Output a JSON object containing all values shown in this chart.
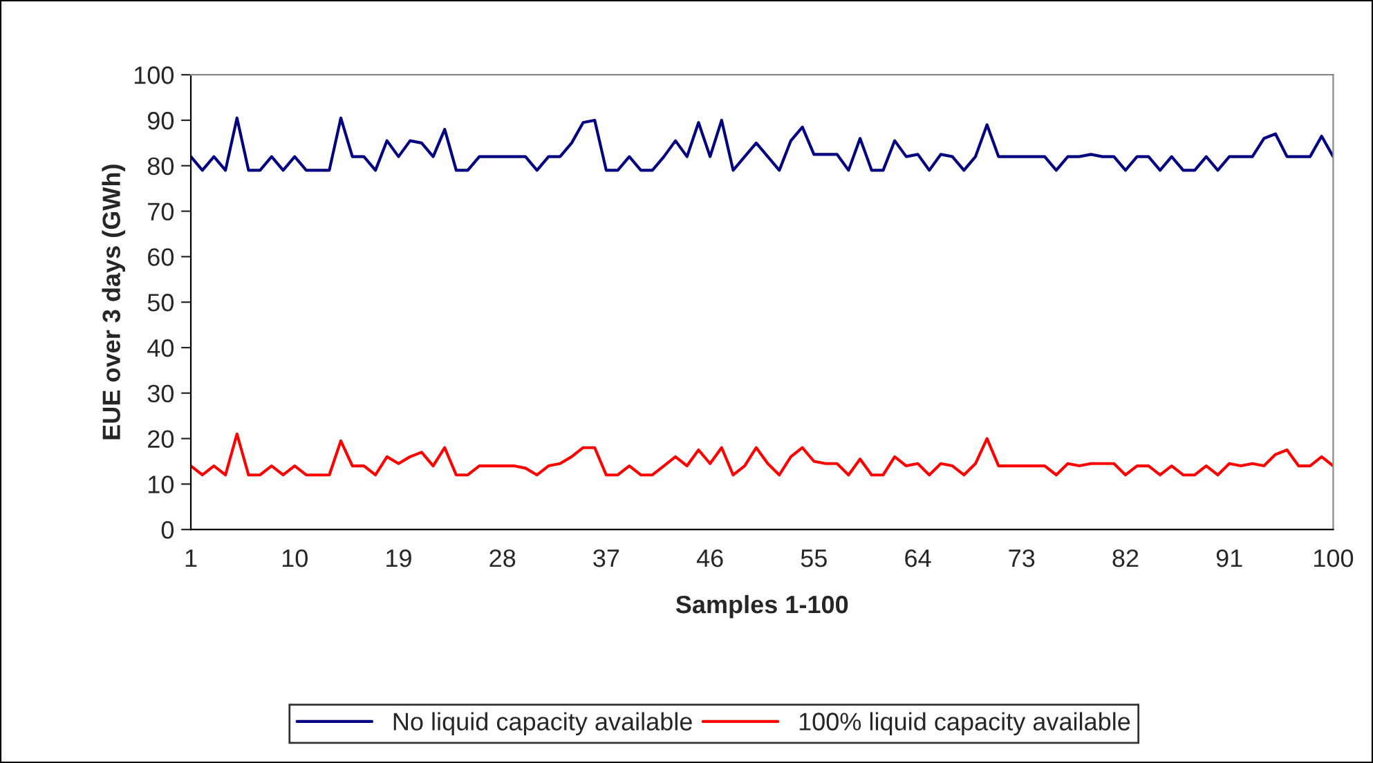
{
  "chart_data": {
    "type": "line",
    "xlabel": "Samples 1-100",
    "ylabel": "EUE over 3 days (GWh)",
    "x": [
      1,
      2,
      3,
      4,
      5,
      6,
      7,
      8,
      9,
      10,
      11,
      12,
      13,
      14,
      15,
      16,
      17,
      18,
      19,
      20,
      21,
      22,
      23,
      24,
      25,
      26,
      27,
      28,
      29,
      30,
      31,
      32,
      33,
      34,
      35,
      36,
      37,
      38,
      39,
      40,
      41,
      42,
      43,
      44,
      45,
      46,
      47,
      48,
      49,
      50,
      51,
      52,
      53,
      54,
      55,
      56,
      57,
      58,
      59,
      60,
      61,
      62,
      63,
      64,
      65,
      66,
      67,
      68,
      69,
      70,
      71,
      72,
      73,
      74,
      75,
      76,
      77,
      78,
      79,
      80,
      81,
      82,
      83,
      84,
      85,
      86,
      87,
      88,
      89,
      90,
      91,
      92,
      93,
      94,
      95,
      96,
      97,
      98,
      99,
      100
    ],
    "series": [
      {
        "name": "No liquid capacity available",
        "color": "#000080",
        "values": [
          82,
          79,
          82,
          79,
          90.5,
          79,
          79,
          82,
          79,
          82,
          79,
          79,
          79,
          90.5,
          82,
          82,
          79,
          85.5,
          82,
          85.5,
          85,
          82,
          88,
          79,
          79,
          82,
          82,
          82,
          82,
          82,
          79,
          82,
          82,
          85,
          89.5,
          90,
          79,
          79,
          82,
          79,
          79,
          82,
          85.5,
          82,
          89.5,
          82,
          90,
          79,
          82,
          85,
          82,
          79,
          85.5,
          88.5,
          82.5,
          82.5,
          82.5,
          79,
          86,
          79,
          79,
          85.5,
          82,
          82.5,
          79,
          82.5,
          82,
          79,
          82,
          89,
          82,
          82,
          82,
          82,
          82,
          79,
          82,
          82,
          82.5,
          82,
          82,
          79,
          82,
          82,
          79,
          82,
          79,
          79,
          82,
          79,
          82,
          82,
          82,
          86,
          87,
          82,
          82,
          82,
          86.5,
          82
        ]
      },
      {
        "name": "100% liquid capacity available",
        "color": "#ff0000",
        "values": [
          14,
          12,
          14,
          12,
          21,
          12,
          12,
          14,
          12,
          14,
          12,
          12,
          12,
          19.5,
          14,
          14,
          12,
          16,
          14.5,
          16,
          17,
          14,
          18,
          12,
          12,
          14,
          14,
          14,
          14,
          13.5,
          12,
          14,
          14.5,
          16,
          18,
          18,
          12,
          12,
          14,
          12,
          12,
          14,
          16,
          14,
          17.5,
          14.5,
          18,
          12,
          14,
          18,
          14.5,
          12,
          16,
          18,
          15,
          14.5,
          14.5,
          12,
          15.5,
          12,
          12,
          16,
          14,
          14.5,
          12,
          14.5,
          14,
          12,
          14.5,
          20,
          14,
          14,
          14,
          14,
          14,
          12,
          14.5,
          14,
          14.5,
          14.5,
          14.5,
          12,
          14,
          14,
          12,
          14,
          12,
          12,
          14,
          12,
          14.5,
          14,
          14.5,
          14,
          16.5,
          17.5,
          14,
          14,
          16,
          14
        ]
      }
    ],
    "ylim": [
      0,
      100
    ],
    "yticks": [
      0,
      10,
      20,
      30,
      40,
      50,
      60,
      70,
      80,
      90,
      100
    ],
    "xlim": [
      1,
      100
    ],
    "xticks": [
      1,
      10,
      19,
      28,
      37,
      46,
      55,
      64,
      73,
      82,
      91,
      100
    ],
    "grid": false,
    "legend": "bottom",
    "marker": "none",
    "line_style": "solid"
  }
}
